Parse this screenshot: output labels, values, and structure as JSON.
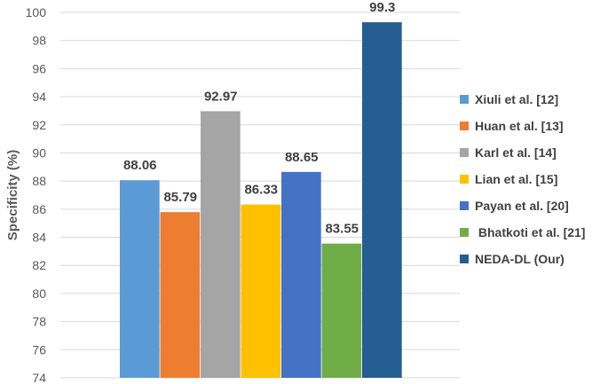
{
  "chart_data": {
    "type": "bar",
    "categories": [
      "Xiuli et al. [12]",
      "Huan et al. [13]",
      "Karl et al. [14]",
      "Lian et al. [15]",
      "Payan et al. [20]",
      " Bhatkoti et al. [21]",
      "NEDA-DL (Our)"
    ],
    "values": [
      88.06,
      85.79,
      92.97,
      86.33,
      88.65,
      83.55,
      99.3
    ],
    "value_labels": [
      "88.06",
      "85.79",
      "92.97",
      "86.33",
      "88.65",
      "83.55",
      "99.3"
    ],
    "colors": [
      "#5b9bd5",
      "#ed7d31",
      "#a5a5a5",
      "#ffc000",
      "#4472c4",
      "#70ad47",
      "#255e91"
    ],
    "ylabel": "Specificity  (%)",
    "ylim": [
      74,
      100
    ],
    "yticks": [
      "74",
      "76",
      "78",
      "80",
      "82",
      "84",
      "86",
      "88",
      "90",
      "92",
      "94",
      "96",
      "98",
      "100"
    ],
    "grid": true,
    "legend_position": "right"
  }
}
